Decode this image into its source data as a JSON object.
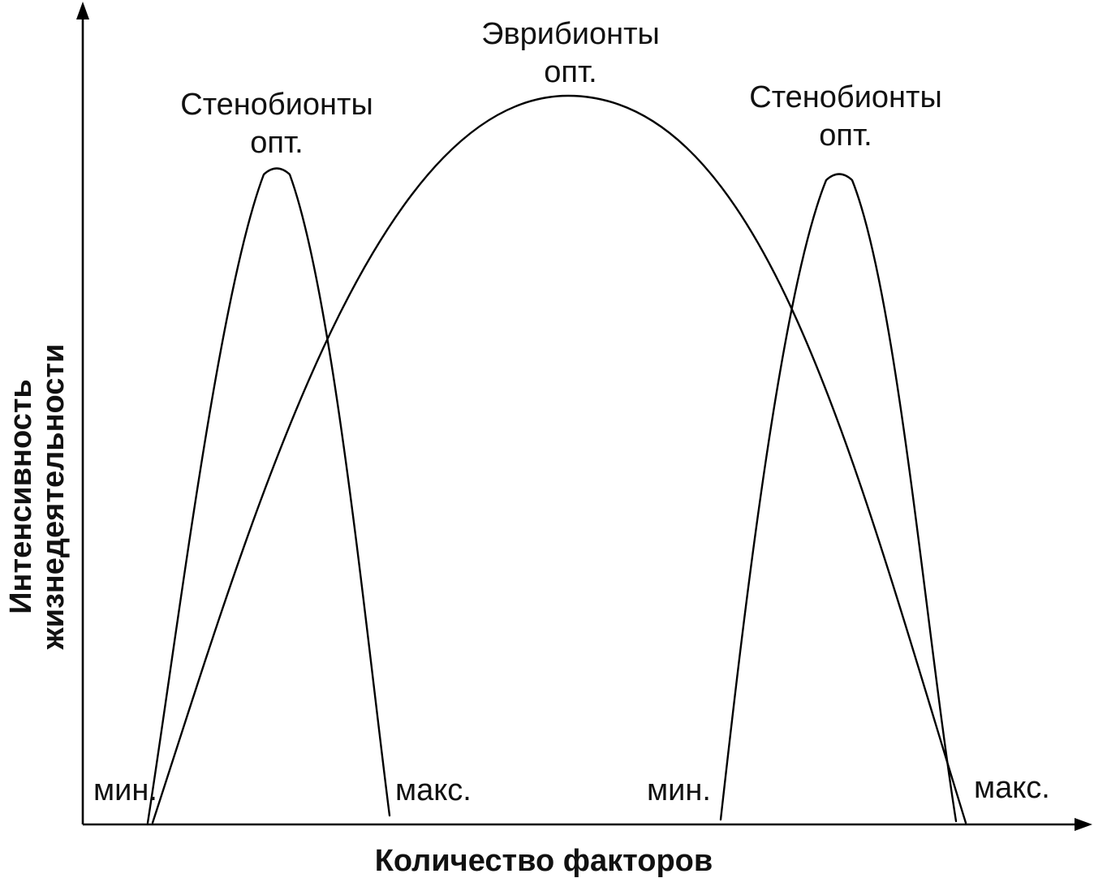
{
  "axes": {
    "x_title": "Количество факторов",
    "y_title_line1": "Интенсивность",
    "y_title_line2": "жизнедеятельности"
  },
  "curves": [
    {
      "name": "Стенобионты",
      "opt_label": "опт.",
      "min_label": "мин.",
      "max_label": "макс."
    },
    {
      "name": "Эврибионты",
      "opt_label": "опт."
    },
    {
      "name": "Стенобионты",
      "opt_label": "опт.",
      "min_label": "мин.",
      "max_label": "макс."
    }
  ],
  "colors": {
    "line": "#000000",
    "text": "#111111",
    "background": "#ffffff"
  }
}
